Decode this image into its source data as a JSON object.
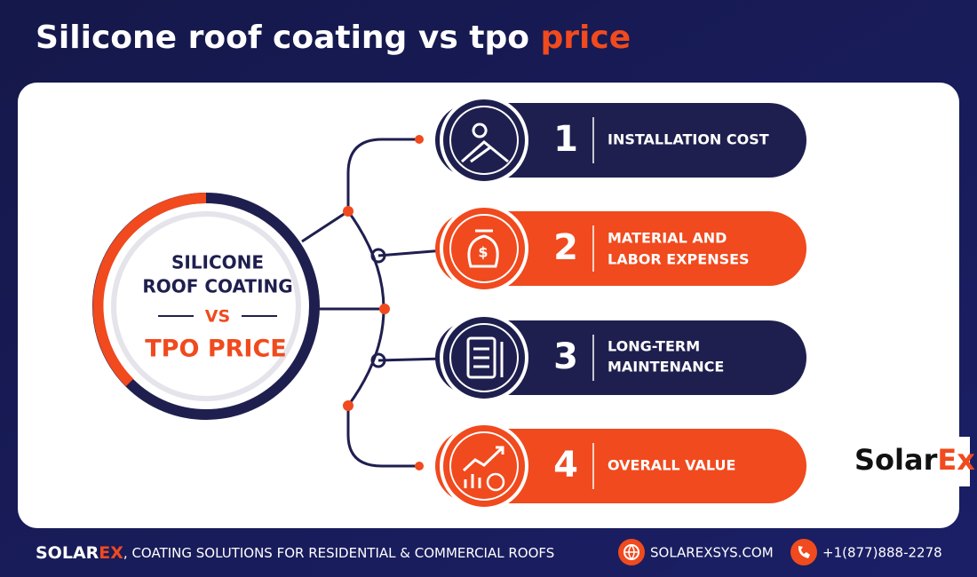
{
  "title": {
    "main": "Silicone roof coating vs tpo ",
    "accent": "price"
  },
  "hub": {
    "line1": "SILICONE",
    "line2": "ROOF COATING",
    "vs": "VS",
    "line3": "TPO PRICE"
  },
  "items": [
    {
      "number": 1,
      "lines": [
        "INSTALLATION COST"
      ]
    },
    {
      "number": 2,
      "lines": [
        "MATERIAL AND",
        "LABOR EXPENSES"
      ]
    },
    {
      "number": 3,
      "lines": [
        "LONG-TERM",
        "MAINTENANCE"
      ]
    },
    {
      "number": 4,
      "lines": [
        "OVERALL VALUE"
      ]
    }
  ],
  "logo": {
    "solar": "Solar",
    "ex": "Ex"
  },
  "footer": {
    "brand_a": "SOLAR",
    "brand_b": "EX",
    "tagline": ", COATING SOLUTIONS FOR RESIDENTIAL & COMMERCIAL ROOFS",
    "website": "SOLAREXSYS.COM",
    "phone": "+1(877)888-2278"
  }
}
